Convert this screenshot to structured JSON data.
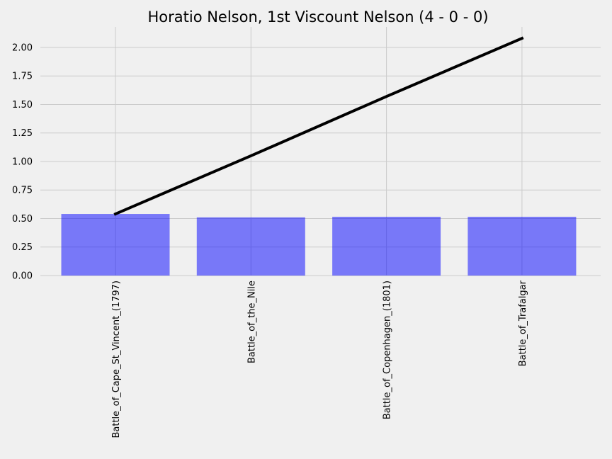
{
  "chart_data": {
    "type": "bar",
    "title": "Horatio Nelson, 1st Viscount Nelson (4 - 0 - 0)",
    "xlabel": "",
    "ylabel": "",
    "categories": [
      "Battle_of_Cape_St_Vincent_(1797)",
      "Battle_of_the_Nile",
      "Battle_of_Copenhagen_(1801)",
      "Battle_of_Trafalgar"
    ],
    "series": [
      {
        "type": "bar",
        "values": [
          0.54,
          0.51,
          0.515,
          0.515
        ],
        "color": "#0000ff",
        "alpha": 0.5
      },
      {
        "type": "line",
        "values": [
          0.54,
          1.05,
          1.57,
          2.08
        ],
        "color": "#000000"
      }
    ],
    "ylim": [
      0,
      2.18
    ],
    "yticks": [
      0,
      0.25,
      0.5,
      0.75,
      1.0,
      1.25,
      1.5,
      1.75,
      2.0
    ],
    "ytick_labels": [
      "0.00",
      "0.25",
      "0.50",
      "0.75",
      "1.00",
      "1.25",
      "1.50",
      "1.75",
      "2.00"
    ],
    "grid": true,
    "legend": "none"
  }
}
